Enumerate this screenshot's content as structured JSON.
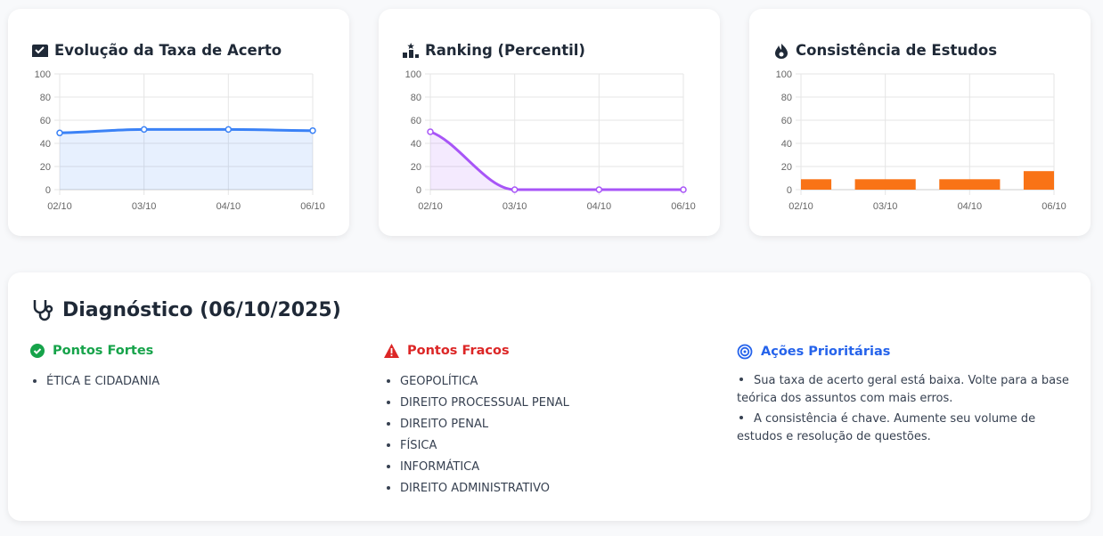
{
  "chart_data": [
    {
      "type": "line",
      "title": "Evolução da Taxa de Acerto",
      "categories": [
        "02/10",
        "03/10",
        "04/10",
        "06/10"
      ],
      "series": [
        {
          "color": "#3b82f6",
          "values": [
            49,
            52,
            52,
            51
          ]
        }
      ],
      "ylim": [
        0,
        100
      ],
      "yticks": [
        0,
        20,
        40,
        60,
        80,
        100
      ],
      "grid": true,
      "area": true
    },
    {
      "type": "line",
      "title": "Ranking (Percentil)",
      "categories": [
        "02/10",
        "03/10",
        "04/10",
        "06/10"
      ],
      "series": [
        {
          "color": "#a855f7",
          "values": [
            50,
            0,
            0,
            0
          ]
        }
      ],
      "ylim": [
        0,
        100
      ],
      "yticks": [
        0,
        20,
        40,
        60,
        80,
        100
      ],
      "grid": true,
      "area": true
    },
    {
      "type": "bar",
      "title": "Consistência de Estudos",
      "categories": [
        "02/10",
        "03/10",
        "04/10",
        "06/10"
      ],
      "series": [
        {
          "color": "#f97316",
          "values": [
            9,
            9,
            9,
            16
          ]
        }
      ],
      "ylim": [
        0,
        100
      ],
      "yticks": [
        0,
        20,
        40,
        60,
        80,
        100
      ],
      "grid": true
    }
  ],
  "diagnosis": {
    "title": "Diagnóstico (06/10/2025)",
    "strengths": {
      "title": "Pontos Fortes",
      "items": [
        "ÉTICA E CIDADANIA"
      ]
    },
    "weaknesses": {
      "title": "Pontos Fracos",
      "items": [
        "GEOPOLÍTICA",
        "DIREITO PROCESSUAL PENAL",
        "DIREITO PENAL",
        "FÍSICA",
        "INFORMÁTICA",
        "DIREITO ADMINISTRATIVO"
      ]
    },
    "actions": {
      "title": "Ações Prioritárias",
      "items": [
        "Sua taxa de acerto geral está baixa. Volte para a base teórica dos assuntos com mais erros.",
        "A consistência é chave. Aumente seu volume de estudos e resolução de questões."
      ]
    }
  }
}
